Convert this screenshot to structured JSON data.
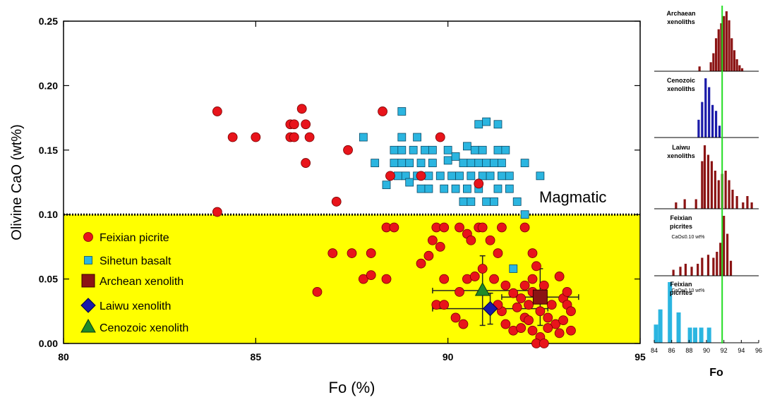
{
  "colors": {
    "feixian": "#e8141b",
    "sihetun": "#2bb5e0",
    "archean": "#8b1414",
    "laiwu": "#1a1aa8",
    "cenozoic": "#1f8a2a",
    "yellow": "#ffff00",
    "green_line": "#22dd22"
  },
  "chart_data": [
    {
      "type": "scatter",
      "xlabel": "Fo (%)",
      "ylabel": "Olivine CaO (wt%)",
      "xlim": [
        80,
        95
      ],
      "ylim": [
        0,
        0.25
      ],
      "xticks": [
        "80",
        "85",
        "90",
        "95"
      ],
      "yticks": [
        "0.00",
        "0.05",
        "0.10",
        "0.15",
        "0.20",
        "0.25"
      ],
      "threshold": 0.1,
      "threshold_label": "Magmatic",
      "legend": [
        "Feixian picrite",
        "Sihetun basalt",
        "Archean xenolith",
        "Laiwu xenolith",
        "Cenozoic xenolith"
      ],
      "series": [
        {
          "name": "Feixian picrite",
          "marker": "circle",
          "points": [
            [
              84,
              0.18
            ],
            [
              84.4,
              0.16
            ],
            [
              85,
              0.16
            ],
            [
              85.9,
              0.17
            ],
            [
              86.0,
              0.17
            ],
            [
              86.2,
              0.182
            ],
            [
              86.3,
              0.17
            ],
            [
              85.9,
              0.16
            ],
            [
              86.0,
              0.16
            ],
            [
              86.4,
              0.16
            ],
            [
              86.3,
              0.14
            ],
            [
              87.4,
              0.15
            ],
            [
              88.3,
              0.18
            ],
            [
              89.8,
              0.16
            ],
            [
              88.5,
              0.13
            ],
            [
              89.3,
              0.13
            ],
            [
              90.8,
              0.124
            ],
            [
              87.1,
              0.11
            ],
            [
              84.0,
              0.102
            ],
            [
              88.4,
              0.09
            ],
            [
              88.6,
              0.09
            ],
            [
              89.7,
              0.09
            ],
            [
              89.9,
              0.09
            ],
            [
              90.3,
              0.09
            ],
            [
              90.8,
              0.09
            ],
            [
              90.9,
              0.09
            ],
            [
              91.4,
              0.09
            ],
            [
              92.0,
              0.09
            ],
            [
              89.6,
              0.08
            ],
            [
              89.8,
              0.075
            ],
            [
              90.5,
              0.085
            ],
            [
              90.6,
              0.08
            ],
            [
              91.1,
              0.08
            ],
            [
              87.0,
              0.07
            ],
            [
              87.5,
              0.07
            ],
            [
              88.0,
              0.07
            ],
            [
              89.5,
              0.068
            ],
            [
              91.3,
              0.07
            ],
            [
              92.2,
              0.07
            ],
            [
              87.8,
              0.05
            ],
            [
              88.0,
              0.053
            ],
            [
              88.4,
              0.05
            ],
            [
              89.9,
              0.05
            ],
            [
              90.5,
              0.05
            ],
            [
              90.3,
              0.04
            ],
            [
              89.7,
              0.03
            ],
            [
              89.9,
              0.03
            ],
            [
              90.2,
              0.02
            ],
            [
              91.2,
              0.05
            ],
            [
              91.5,
              0.045
            ],
            [
              92.3,
              0.06
            ],
            [
              92.2,
              0.05
            ],
            [
              92.5,
              0.045
            ],
            [
              92.9,
              0.052
            ],
            [
              86.6,
              0.04
            ],
            [
              89.3,
              0.062
            ],
            [
              90.9,
              0.058
            ],
            [
              90.7,
              0.052
            ],
            [
              91.7,
              0.039
            ],
            [
              91.9,
              0.035
            ],
            [
              92.1,
              0.03
            ],
            [
              92.4,
              0.025
            ],
            [
              92.7,
              0.03
            ],
            [
              93.0,
              0.035
            ],
            [
              93.1,
              0.03
            ],
            [
              93.2,
              0.025
            ],
            [
              92.6,
              0.02
            ],
            [
              92.8,
              0.015
            ],
            [
              93.0,
              0.018
            ],
            [
              93.2,
              0.01
            ],
            [
              91.5,
              0.015
            ],
            [
              91.7,
              0.01
            ],
            [
              91.9,
              0.012
            ],
            [
              92.0,
              0.02
            ],
            [
              92.2,
              0.01
            ],
            [
              92.4,
              0.005
            ],
            [
              92.3,
              0.0
            ],
            [
              92.5,
              0.0
            ],
            [
              91.4,
              0.025
            ],
            [
              91.8,
              0.028
            ],
            [
              92.1,
              0.018
            ],
            [
              92.6,
              0.012
            ],
            [
              93.1,
              0.04
            ],
            [
              92.9,
              0.008
            ],
            [
              91.3,
              0.03
            ],
            [
              90.4,
              0.015
            ],
            [
              92.2,
              0.04
            ],
            [
              92.0,
              0.045
            ]
          ]
        },
        {
          "name": "Sihetun basalt",
          "marker": "square",
          "points": [
            [
              88.8,
              0.18
            ],
            [
              87.8,
              0.16
            ],
            [
              88.8,
              0.16
            ],
            [
              89.2,
              0.16
            ],
            [
              88.6,
              0.15
            ],
            [
              88.8,
              0.15
            ],
            [
              89.1,
              0.15
            ],
            [
              89.4,
              0.15
            ],
            [
              89.6,
              0.15
            ],
            [
              90.0,
              0.15
            ],
            [
              90.5,
              0.153
            ],
            [
              90.7,
              0.15
            ],
            [
              90.9,
              0.15
            ],
            [
              91.3,
              0.15
            ],
            [
              91.5,
              0.15
            ],
            [
              90.8,
              0.17
            ],
            [
              91.0,
              0.172
            ],
            [
              91.3,
              0.17
            ],
            [
              88.1,
              0.14
            ],
            [
              88.6,
              0.14
            ],
            [
              88.8,
              0.14
            ],
            [
              89.0,
              0.14
            ],
            [
              89.3,
              0.14
            ],
            [
              89.6,
              0.14
            ],
            [
              90.0,
              0.142
            ],
            [
              90.2,
              0.145
            ],
            [
              90.4,
              0.14
            ],
            [
              90.6,
              0.14
            ],
            [
              90.8,
              0.14
            ],
            [
              91.0,
              0.14
            ],
            [
              91.2,
              0.14
            ],
            [
              91.4,
              0.14
            ],
            [
              92.0,
              0.14
            ],
            [
              88.7,
              0.13
            ],
            [
              88.9,
              0.13
            ],
            [
              89.2,
              0.13
            ],
            [
              89.5,
              0.13
            ],
            [
              89.8,
              0.13
            ],
            [
              90.1,
              0.13
            ],
            [
              90.3,
              0.13
            ],
            [
              90.6,
              0.13
            ],
            [
              90.9,
              0.13
            ],
            [
              91.1,
              0.13
            ],
            [
              91.4,
              0.13
            ],
            [
              91.6,
              0.13
            ],
            [
              92.4,
              0.13
            ],
            [
              88.4,
              0.123
            ],
            [
              89.0,
              0.125
            ],
            [
              89.3,
              0.12
            ],
            [
              89.5,
              0.12
            ],
            [
              89.9,
              0.12
            ],
            [
              90.2,
              0.12
            ],
            [
              90.5,
              0.12
            ],
            [
              90.8,
              0.12
            ],
            [
              91.3,
              0.12
            ],
            [
              91.6,
              0.12
            ],
            [
              90.4,
              0.11
            ],
            [
              90.6,
              0.11
            ],
            [
              91.0,
              0.11
            ],
            [
              91.2,
              0.11
            ],
            [
              91.8,
              0.11
            ],
            [
              92.0,
              0.1
            ],
            [
              91.7,
              0.058
            ]
          ]
        },
        {
          "name": "Archean xenolith",
          "marker": "big-square",
          "points": [
            [
              92.4,
              0.036
            ]
          ]
        },
        {
          "name": "Laiwu xenolith",
          "marker": "diamond",
          "points": [
            [
              91.1,
              0.027
            ]
          ]
        },
        {
          "name": "Cenozoic xenolith",
          "marker": "triangle",
          "points": [
            [
              90.9,
              0.041
            ]
          ]
        }
      ]
    },
    {
      "type": "bar",
      "title": "Archaean xenoliths",
      "color": "archean",
      "xlim": [
        84,
        96
      ],
      "bins": [
        [
          89.2,
          0.08
        ],
        [
          90.5,
          0.15
        ],
        [
          90.8,
          0.3
        ],
        [
          91.1,
          0.55
        ],
        [
          91.4,
          0.7
        ],
        [
          91.7,
          0.8
        ],
        [
          92.0,
          0.92
        ],
        [
          92.3,
          1.0
        ],
        [
          92.6,
          0.85
        ],
        [
          92.9,
          0.55
        ],
        [
          93.2,
          0.35
        ],
        [
          93.5,
          0.2
        ],
        [
          93.8,
          0.1
        ],
        [
          94.1,
          0.05
        ]
      ]
    },
    {
      "type": "bar",
      "title": "Cenozoic xenoliths",
      "color": "laiwu",
      "xlim": [
        84,
        96
      ],
      "bins": [
        [
          89.1,
          0.3
        ],
        [
          89.5,
          0.6
        ],
        [
          89.9,
          1.0
        ],
        [
          90.3,
          0.85
        ],
        [
          90.7,
          0.55
        ],
        [
          91.1,
          0.45
        ],
        [
          91.5,
          0.2
        ]
      ]
    },
    {
      "type": "bar",
      "title": "Laiwu xenoliths",
      "color": "archean",
      "xlim": [
        84,
        96
      ],
      "bins": [
        [
          86.5,
          0.1
        ],
        [
          87.5,
          0.15
        ],
        [
          88.8,
          0.15
        ],
        [
          89.5,
          0.75
        ],
        [
          89.8,
          1.0
        ],
        [
          90.2,
          0.85
        ],
        [
          90.6,
          0.75
        ],
        [
          91.0,
          0.6
        ],
        [
          91.4,
          0.45
        ],
        [
          91.8,
          0.55
        ],
        [
          92.2,
          0.6
        ],
        [
          92.6,
          0.45
        ],
        [
          93.0,
          0.3
        ],
        [
          93.5,
          0.2
        ],
        [
          94.2,
          0.1
        ],
        [
          94.7,
          0.2
        ],
        [
          95.2,
          0.1
        ]
      ]
    },
    {
      "type": "bar",
      "title": "Feixian picrites",
      "subtitle": "CaO≤0.10 wt%",
      "color": "archean",
      "xlim": [
        84,
        96
      ],
      "bins": [
        [
          86.2,
          0.1
        ],
        [
          87.0,
          0.15
        ],
        [
          87.6,
          0.2
        ],
        [
          88.3,
          0.15
        ],
        [
          89.0,
          0.2
        ],
        [
          89.5,
          0.3
        ],
        [
          90.2,
          0.35
        ],
        [
          90.8,
          0.3
        ],
        [
          91.2,
          0.4
        ],
        [
          91.6,
          0.55
        ],
        [
          92.0,
          1.0
        ],
        [
          92.4,
          0.7
        ],
        [
          92.8,
          0.25
        ]
      ]
    },
    {
      "type": "bar",
      "title": "Feixian picrites",
      "subtitle": "CaO≥0.10 wt%",
      "color": "sihetun",
      "xlim": [
        84,
        96
      ],
      "bins": [
        [
          84.2,
          0.3
        ],
        [
          84.7,
          0.55
        ],
        [
          85.8,
          1.0
        ],
        [
          86.8,
          0.5
        ],
        [
          88.1,
          0.25
        ],
        [
          88.7,
          0.25
        ],
        [
          89.4,
          0.25
        ],
        [
          90.3,
          0.25
        ]
      ],
      "xticks": [
        "84",
        "86",
        "88",
        "90",
        "92",
        "94",
        "96"
      ],
      "xlabel": "Fo",
      "marker_line": 91.8
    }
  ]
}
